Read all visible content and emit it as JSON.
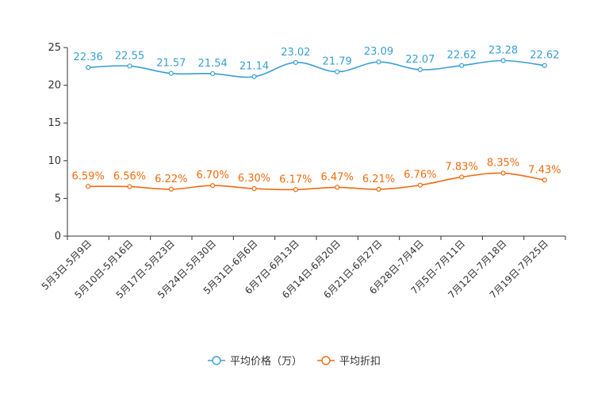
{
  "chart_data": {
    "type": "line",
    "title": "",
    "xlabel": "",
    "ylabel": "",
    "ylim": [
      0,
      25
    ],
    "yticks": [
      0,
      5,
      10,
      15,
      20,
      25
    ],
    "grid": false,
    "legend_position": "bottom",
    "categories": [
      "5月3日-5月9日",
      "5月10日-5月16日",
      "5月17日-5月23日",
      "5月24日-5月30日",
      "5月31日-6月6日",
      "6月7日-6月13日",
      "6月14日-6月20日",
      "6月21日-6月27日",
      "6月28日-7月4日",
      "7月5日-7月11日",
      "7月12日-7月18日",
      "7月19日-7月25日"
    ],
    "series": [
      {
        "name": "平均价格（万）",
        "color": "#3a9fd1",
        "values": [
          22.36,
          22.55,
          21.57,
          21.54,
          21.14,
          23.02,
          21.79,
          23.09,
          22.07,
          22.62,
          23.28,
          22.62
        ],
        "labels": [
          "22.36",
          "22.55",
          "21.57",
          "21.54",
          "21.14",
          "23.02",
          "21.79",
          "23.09",
          "22.07",
          "22.62",
          "23.28",
          "22.62"
        ]
      },
      {
        "name": "平均折扣",
        "color": "#f26b0f",
        "values": [
          6.59,
          6.56,
          6.22,
          6.7,
          6.3,
          6.17,
          6.47,
          6.21,
          6.76,
          7.83,
          8.35,
          7.43
        ],
        "labels": [
          "6.59%",
          "6.56%",
          "6.22%",
          "6.70%",
          "6.30%",
          "6.17%",
          "6.47%",
          "6.21%",
          "6.76%",
          "7.83%",
          "8.35%",
          "7.43%"
        ]
      }
    ]
  }
}
